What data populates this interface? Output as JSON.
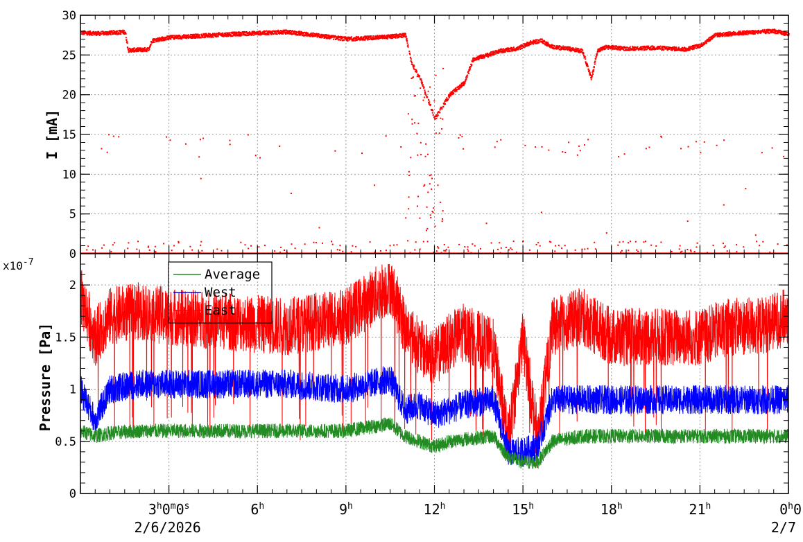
{
  "colors": {
    "current": "#ff0000",
    "average": "#228b22",
    "west": "#0000ff",
    "east": "#ff0000",
    "grid": "#999999",
    "frame": "#000000"
  },
  "chart_data": [
    {
      "type": "scatter",
      "ylabel": "I [mA]",
      "xlabel": "",
      "ylim": [
        0,
        30
      ],
      "yticks": [
        "0",
        "5",
        "10",
        "15",
        "20",
        "25",
        "30"
      ],
      "grid": true,
      "series": [
        {
          "profile_hours": [
            0.0,
            0.6,
            1.5,
            1.6,
            2.3,
            2.4,
            3.0,
            5.0,
            7.0,
            9.0,
            10.5,
            11.0,
            11.2,
            11.5,
            11.8,
            12.0,
            12.5,
            13.0,
            13.3,
            13.8,
            14.2,
            14.8,
            15.2,
            15.6,
            16.0,
            16.5,
            17.0,
            17.3,
            17.5,
            17.8,
            18.5,
            19.5,
            20.5,
            21.0,
            21.5,
            22.5,
            23.5,
            24.0
          ],
          "profile_mA": [
            27.8,
            27.7,
            27.9,
            25.6,
            25.7,
            26.8,
            27.2,
            27.6,
            27.9,
            27.0,
            27.3,
            27.5,
            24.0,
            22.0,
            19.0,
            17.0,
            20.0,
            21.5,
            24.5,
            25.0,
            25.5,
            25.8,
            26.5,
            26.8,
            26.0,
            25.8,
            25.5,
            22.0,
            25.5,
            26.0,
            25.8,
            25.9,
            25.7,
            26.2,
            27.5,
            27.8,
            28.0,
            27.6
          ]
        }
      ]
    },
    {
      "type": "line",
      "ylabel": "Pressure [Pa]",
      "xlabel": "",
      "y_exponent_label": "x10",
      "y_exponent": "-7",
      "ylim": [
        0,
        2.3e-07
      ],
      "yticks": [
        "0",
        "0.5",
        "1",
        "1.5",
        "2"
      ],
      "grid": true,
      "legend_placement": "top-left",
      "series": [
        {
          "name": "Average",
          "profile_hours": [
            0,
            0.5,
            1,
            2,
            3,
            5,
            7,
            9,
            10.5,
            11,
            11.5,
            12,
            12.5,
            13,
            14,
            14.5,
            15,
            15.5,
            16,
            17,
            18,
            19,
            20,
            21,
            22,
            23,
            24
          ],
          "profile_e7": [
            0.6,
            0.55,
            0.58,
            0.6,
            0.6,
            0.6,
            0.6,
            0.6,
            0.67,
            0.55,
            0.5,
            0.45,
            0.5,
            0.52,
            0.55,
            0.35,
            0.3,
            0.3,
            0.5,
            0.55,
            0.55,
            0.55,
            0.55,
            0.55,
            0.55,
            0.55,
            0.55
          ]
        },
        {
          "name": "West",
          "profile_hours": [
            0,
            0.5,
            1,
            2,
            3,
            5,
            7,
            9,
            10.5,
            11,
            11.5,
            12,
            12.5,
            13,
            14,
            14.5,
            15,
            15.5,
            16,
            17,
            18,
            19,
            20,
            21,
            22,
            23,
            24
          ],
          "profile_e7": [
            1.0,
            0.7,
            1.0,
            1.05,
            1.05,
            1.05,
            1.05,
            1.0,
            1.1,
            0.8,
            0.85,
            0.75,
            0.8,
            0.85,
            0.9,
            0.4,
            0.4,
            0.45,
            0.9,
            0.9,
            0.9,
            0.9,
            0.9,
            0.9,
            0.9,
            0.9,
            0.9
          ]
        },
        {
          "name": "East",
          "profile_hours": [
            0,
            0.5,
            1,
            2,
            3,
            5,
            7,
            9,
            10.5,
            11,
            11.5,
            12,
            12.5,
            13,
            14,
            14.5,
            15,
            15.5,
            16,
            17,
            18,
            19,
            20,
            21,
            22,
            23,
            24
          ],
          "profile_e7": [
            1.9,
            1.5,
            1.7,
            1.75,
            1.7,
            1.65,
            1.6,
            1.7,
            2.0,
            1.6,
            1.4,
            1.3,
            1.45,
            1.55,
            1.4,
            0.5,
            1.5,
            0.5,
            1.6,
            1.7,
            1.5,
            1.5,
            1.5,
            1.5,
            1.6,
            1.6,
            1.7
          ]
        }
      ]
    }
  ],
  "time_axis": {
    "tick_hours": [
      0,
      3,
      6,
      9,
      12,
      15,
      18,
      21,
      24
    ],
    "labels": [
      {
        "hour": 3,
        "main": "3",
        "sup1": "h",
        "mid": "0",
        "sup2": "m",
        "end": "0",
        "sup3": "s"
      },
      {
        "hour": 6,
        "main": "6",
        "sup1": "h"
      },
      {
        "hour": 9,
        "main": "9",
        "sup1": "h"
      },
      {
        "hour": 12,
        "main": "12",
        "sup1": "h"
      },
      {
        "hour": 15,
        "main": "15",
        "sup1": "h"
      },
      {
        "hour": 18,
        "main": "18",
        "sup1": "h"
      },
      {
        "hour": 21,
        "main": "21",
        "sup1": "h"
      },
      {
        "hour": 24,
        "main": "0",
        "sup1": "h",
        "mid": "0"
      }
    ],
    "start_date": "2/6/2026",
    "end_date": "2/7"
  }
}
